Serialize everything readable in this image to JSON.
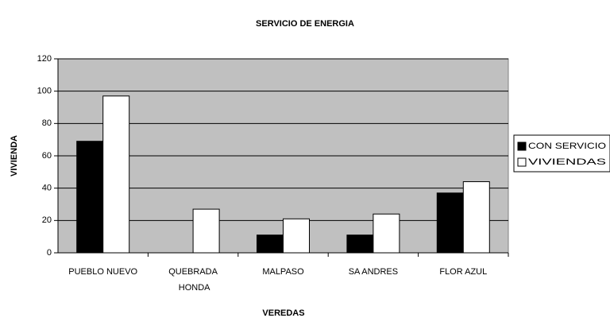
{
  "chart_data": {
    "type": "bar",
    "title": "SERVICIO DE ENERGIA",
    "x_label": "VEREDAS",
    "y_label": "VIVIENDA",
    "categories": [
      "PUEBLO NUEVO",
      "QUEBRADA HONDA",
      "MALPASO",
      "SA ANDRES",
      "FLOR AZUL"
    ],
    "series": [
      {
        "name": "CON SERVICIO",
        "color": "#000000",
        "values": [
          69,
          0,
          11,
          11,
          37
        ]
      },
      {
        "name": "VIVIENDAS",
        "color": "#ffffff",
        "values": [
          97,
          27,
          21,
          24,
          44
        ]
      }
    ],
    "ylim": [
      0,
      120
    ],
    "yticks": [
      0,
      20,
      40,
      60,
      80,
      100,
      120
    ],
    "grid": true,
    "plot_background": "#c0c0c0",
    "legend": "right"
  }
}
